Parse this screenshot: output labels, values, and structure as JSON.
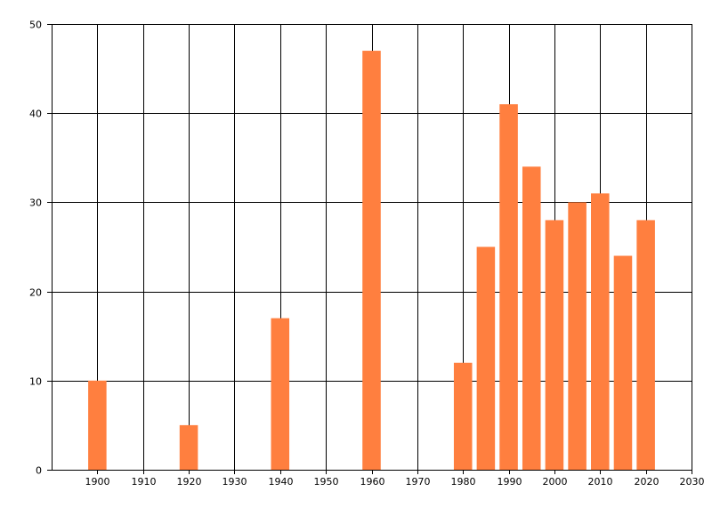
{
  "chart_data": {
    "type": "bar",
    "x": [
      1900,
      1920,
      1940,
      1960,
      1980,
      1985,
      1990,
      1995,
      2000,
      2005,
      2010,
      2015,
      2020
    ],
    "values": [
      10,
      5,
      17,
      47,
      12,
      25,
      41,
      34,
      28,
      30,
      31,
      24,
      28
    ],
    "xlim": [
      1890,
      2030
    ],
    "ylim": [
      0,
      50
    ],
    "xticks": [
      1900,
      1910,
      1920,
      1930,
      1940,
      1950,
      1960,
      1970,
      1980,
      1990,
      2000,
      2010,
      2020,
      2030
    ],
    "yticks": [
      0,
      10,
      20,
      30,
      40,
      50
    ],
    "bar_width_years": 4,
    "grid": true,
    "colors": {
      "bar": "#FF7F3F",
      "grid": "#000000",
      "axis": "#000000"
    }
  }
}
